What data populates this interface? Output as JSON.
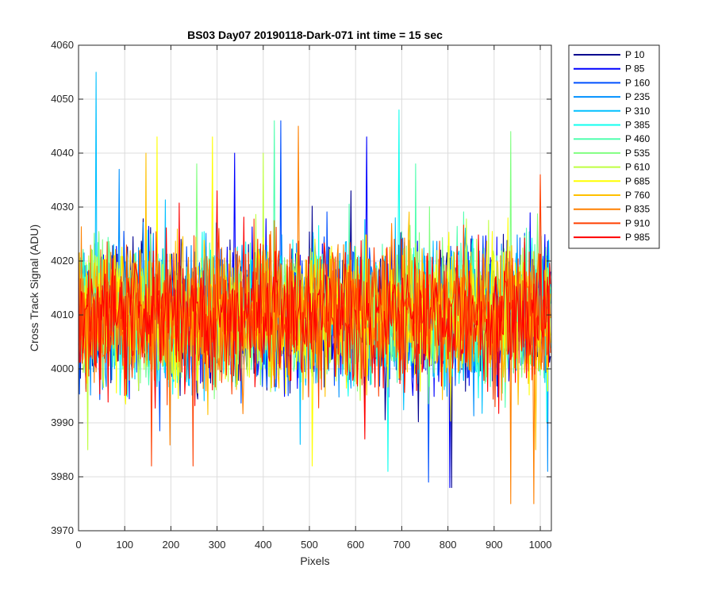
{
  "chart_data": {
    "type": "line",
    "title": "BS03 Day07 20190118-Dark-071 int time = 15 sec",
    "xlabel": "Pixels",
    "ylabel": "Cross Track Signal (ADU)",
    "xlim": [
      0,
      1024
    ],
    "ylim": [
      3970,
      4060
    ],
    "xticks": [
      "0",
      "100",
      "200",
      "300",
      "400",
      "500",
      "600",
      "700",
      "800",
      "900",
      "1000"
    ],
    "yticks": [
      "3970",
      "3980",
      "3990",
      "4000",
      "4010",
      "4020",
      "4030",
      "4040",
      "4050",
      "4060"
    ],
    "grid": true,
    "legend_position": "outside-top-right",
    "noise_center": 4010,
    "series": [
      {
        "name": "P 10",
        "color": "#00008f",
        "peaks": [
          [
            807,
            3978
          ],
          [
            589,
            4033
          ]
        ]
      },
      {
        "name": "P 85",
        "color": "#0000ff",
        "peaks": [
          [
            623,
            4043
          ],
          [
            337,
            4040
          ],
          [
            804,
            3978
          ]
        ]
      },
      {
        "name": "P 160",
        "color": "#0050ff",
        "peaks": [
          [
            437,
            4046
          ],
          [
            758,
            3979
          ]
        ]
      },
      {
        "name": "P 235",
        "color": "#0090ff",
        "peaks": [
          [
            1015,
            3981
          ],
          [
            88,
            4037
          ]
        ]
      },
      {
        "name": "P 310",
        "color": "#00c0ff",
        "peaks": [
          [
            38,
            4055
          ],
          [
            480,
            3986
          ]
        ]
      },
      {
        "name": "P 385",
        "color": "#10ffef",
        "peaks": [
          [
            670,
            3981
          ],
          [
            693,
            4048
          ]
        ]
      },
      {
        "name": "P 460",
        "color": "#50ffaf",
        "peaks": [
          [
            424,
            4046
          ],
          [
            730,
            4038
          ]
        ]
      },
      {
        "name": "P 535",
        "color": "#80ff80",
        "peaks": [
          [
            936,
            4044
          ],
          [
            255,
            4038
          ]
        ]
      },
      {
        "name": "P 610",
        "color": "#bfff40",
        "peaks": [
          [
            400,
            4040
          ],
          [
            20,
            3985
          ]
        ]
      },
      {
        "name": "P 685",
        "color": "#ffff00",
        "peaks": [
          [
            170,
            4043
          ],
          [
            290,
            4043
          ],
          [
            505,
            3982
          ]
        ]
      },
      {
        "name": "P 760",
        "color": "#ffc000",
        "peaks": [
          [
            145,
            4040
          ],
          [
            990,
            3985
          ]
        ]
      },
      {
        "name": "P 835",
        "color": "#ff8000",
        "peaks": [
          [
            476,
            4045
          ],
          [
            935,
            3975
          ],
          [
            985,
            3975
          ]
        ]
      },
      {
        "name": "P 910",
        "color": "#ff4000",
        "peaks": [
          [
            1000,
            4036
          ],
          [
            157,
            3982
          ],
          [
            247,
            3982
          ]
        ]
      },
      {
        "name": "P 985",
        "color": "#ff0000",
        "peaks": [
          [
            300,
            4033
          ],
          [
            620,
            3987
          ]
        ]
      }
    ]
  }
}
